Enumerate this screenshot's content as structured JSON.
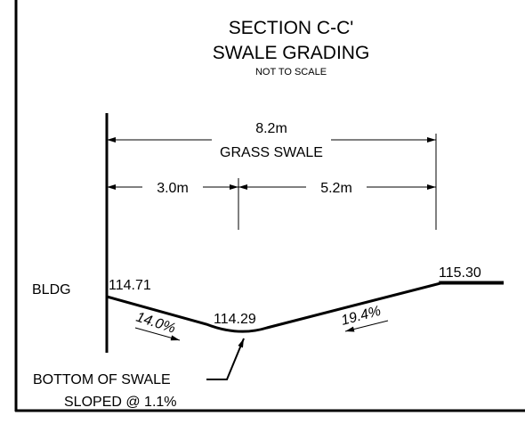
{
  "title": "SECTION C-C'",
  "subtitle": "SWALE GRADING",
  "scale_note": "NOT TO SCALE",
  "dimensions": {
    "overall": "8.2m",
    "overall_label": "GRASS SWALE",
    "left": "3.0m",
    "right": "5.2m"
  },
  "labels": {
    "building": "BLDG",
    "elev_bldg": "114.71",
    "elev_bottom": "114.29",
    "elev_top": "115.30",
    "slope_left": "14.0%",
    "slope_right": "19.4%",
    "note_line1": "BOTTOM OF SWALE",
    "note_line2": "SLOPED @ 1.1%"
  }
}
